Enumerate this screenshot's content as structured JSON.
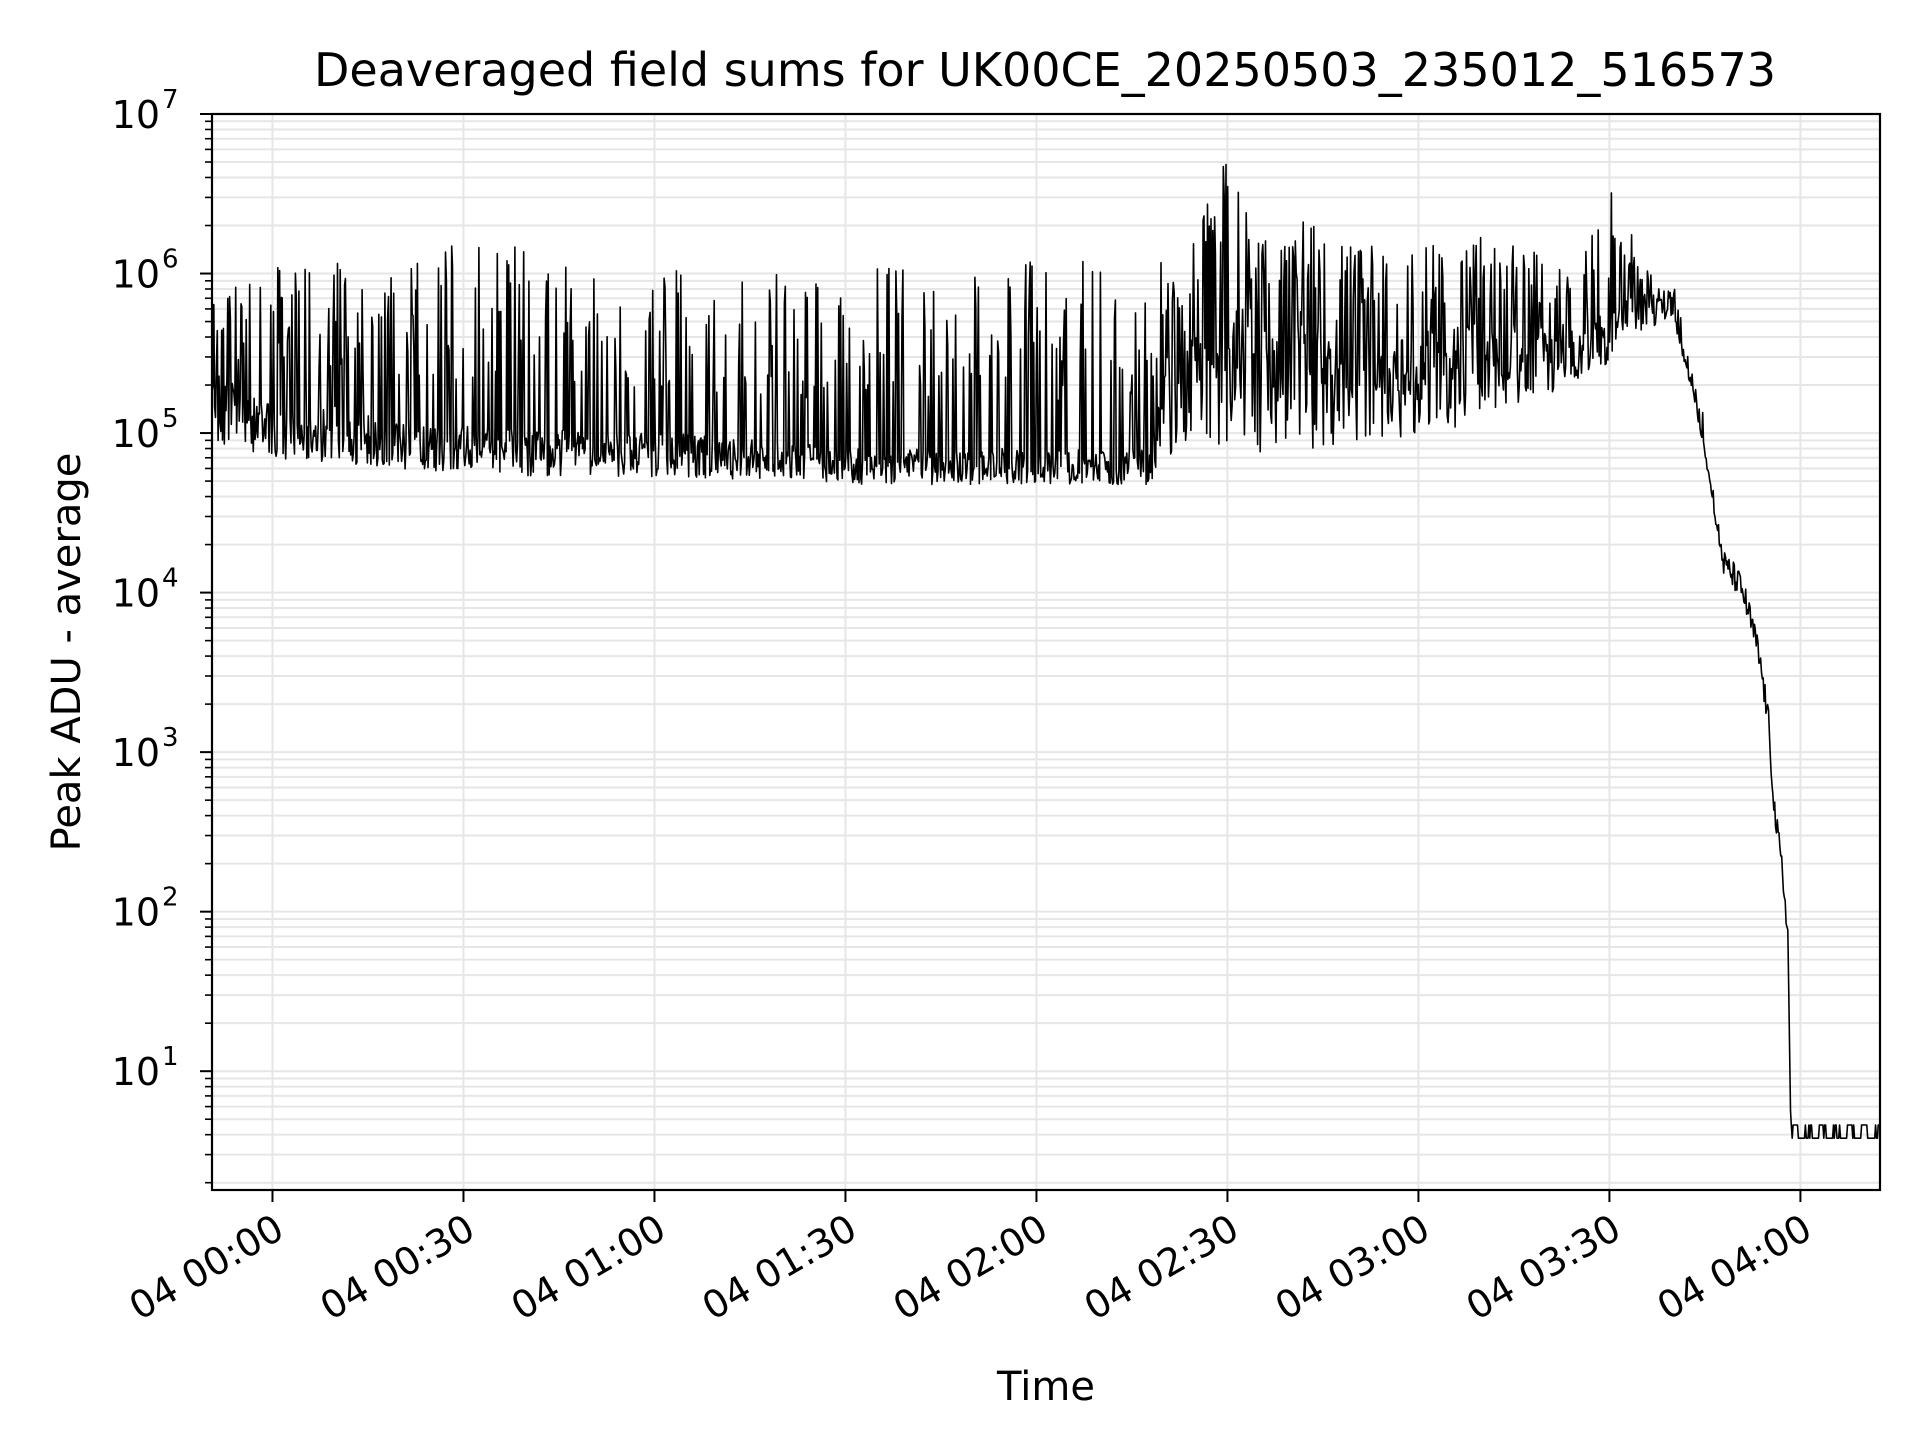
{
  "chart_data": {
    "type": "line",
    "title": "Deaveraged field sums for UK00CE_20250503_235012_516573",
    "xlabel": "Time",
    "ylabel": "Peak ADU - average",
    "yscale": "log",
    "ylim": [
      1.8,
      10000000
    ],
    "xlim_minutes": [
      -9.5,
      252.5
    ],
    "grid": true,
    "line_color": "#000000",
    "grid_color": "#e6e6e6",
    "x_ticks": [
      {
        "label": "04 00:00",
        "minutes": 0
      },
      {
        "label": "04 00:30",
        "minutes": 30
      },
      {
        "label": "04 01:00",
        "minutes": 60
      },
      {
        "label": "04 01:30",
        "minutes": 90
      },
      {
        "label": "04 02:00",
        "minutes": 120
      },
      {
        "label": "04 02:30",
        "minutes": 150
      },
      {
        "label": "04 03:00",
        "minutes": 180
      },
      {
        "label": "04 03:30",
        "minutes": 210
      },
      {
        "label": "04 04:00",
        "minutes": 240
      }
    ],
    "y_ticks": [
      {
        "base": "10",
        "exp": "1",
        "value": 10
      },
      {
        "base": "10",
        "exp": "2",
        "value": 100
      },
      {
        "base": "10",
        "exp": "3",
        "value": 1000
      },
      {
        "base": "10",
        "exp": "4",
        "value": 10000
      },
      {
        "base": "10",
        "exp": "5",
        "value": 100000
      },
      {
        "base": "10",
        "exp": "6",
        "value": 1000000
      },
      {
        "base": "10",
        "exp": "7",
        "value": 10000000
      }
    ],
    "series": [
      {
        "time_minutes": [
          -9.5,
          -5,
          0,
          5,
          10,
          20,
          30,
          40,
          50,
          60,
          70,
          80,
          90,
          100,
          110,
          120,
          130,
          138,
          140,
          142,
          145,
          150,
          155,
          160,
          170,
          180,
          190,
          200,
          205,
          210,
          215,
          218,
          220,
          222,
          223,
          225,
          227,
          228,
          230,
          231,
          233,
          234,
          235,
          236,
          237,
          238,
          238.5,
          240,
          245,
          252.5
        ],
        "values": [
          300000,
          180000,
          150000,
          140000,
          150000,
          120000,
          110000,
          110000,
          100000,
          100000,
          100000,
          90000,
          80000,
          80000,
          80000,
          80000,
          80000,
          80000,
          350000,
          400000,
          500000,
          600000,
          650000,
          600000,
          500000,
          450000,
          500000,
          500000,
          500000,
          600000,
          800000,
          700000,
          600000,
          300000,
          200000,
          80000,
          25000,
          15000,
          12000,
          10000,
          5000,
          3000,
          1500,
          400,
          200,
          80,
          4,
          4,
          4,
          4
        ],
        "envelope_low": [
          80000,
          70000,
          65000,
          60000,
          60000,
          55000,
          52000,
          50000,
          50000,
          48000,
          48000,
          47000,
          45000,
          45000,
          45000,
          45000,
          45000,
          45000,
          60000,
          60000,
          60000,
          60000,
          60000,
          60000,
          70000,
          80000,
          100000,
          150000,
          200000,
          250000,
          350000,
          500000,
          500000,
          250000,
          180000,
          70000,
          22000,
          14000,
          11000,
          9000,
          4500,
          2500,
          1200,
          300,
          120,
          40,
          3.8,
          3.8,
          3.8,
          3.8
        ],
        "envelope_high": [
          1000000,
          1000000,
          1100000,
          1300000,
          1300000,
          1100000,
          1600000,
          1600000,
          1000000,
          1100000,
          1000000,
          1000000,
          1200000,
          1200000,
          1100000,
          1200000,
          1200000,
          700000,
          1400000,
          1500000,
          1800000,
          6000000,
          1500000,
          2800000,
          1500000,
          1600000,
          1800000,
          1300000,
          1000000,
          3600000,
          1300000,
          1000000,
          900000,
          400000,
          250000,
          120000,
          30000,
          16000,
          13000,
          11000,
          6000,
          3500,
          2200,
          1100,
          250,
          60,
          4.8,
          4.8,
          4.8,
          4.8
        ]
      }
    ]
  }
}
